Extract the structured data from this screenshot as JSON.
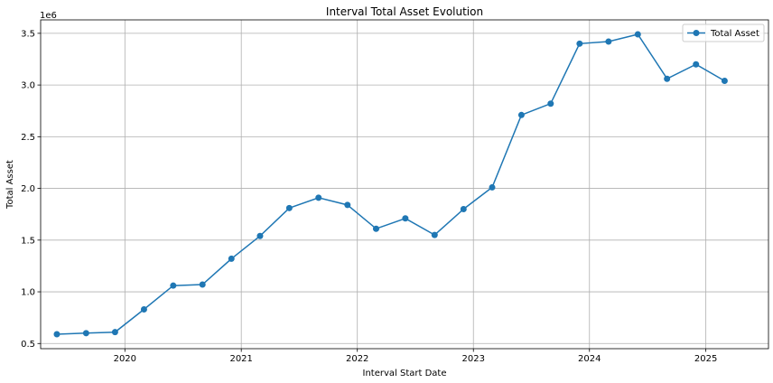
{
  "chart_data": {
    "type": "line",
    "title": "Interval Total Asset Evolution",
    "xlabel": "Interval Start Date",
    "ylabel": "Total Asset",
    "y_offset_text": "1e6",
    "grid": true,
    "legend_position": "top-right",
    "xlim": [
      "2019-04-11",
      "2025-07-17"
    ],
    "ylim": [
      0.45,
      3.63
    ],
    "y_scale_factor": 1000000,
    "x_ticks": [
      {
        "date": "2020-01-01",
        "label": "2020"
      },
      {
        "date": "2021-01-01",
        "label": "2021"
      },
      {
        "date": "2022-01-01",
        "label": "2022"
      },
      {
        "date": "2023-01-01",
        "label": "2023"
      },
      {
        "date": "2024-01-01",
        "label": "2024"
      },
      {
        "date": "2025-01-01",
        "label": "2025"
      }
    ],
    "y_ticks": [
      {
        "value": 0.5,
        "label": "0.5"
      },
      {
        "value": 1.0,
        "label": "1.0"
      },
      {
        "value": 1.5,
        "label": "1.5"
      },
      {
        "value": 2.0,
        "label": "2.0"
      },
      {
        "value": 2.5,
        "label": "2.5"
      },
      {
        "value": 3.0,
        "label": "3.0"
      },
      {
        "value": 3.5,
        "label": "3.5"
      }
    ],
    "series": [
      {
        "name": "Total Asset",
        "color": "#1f77b4",
        "marker": "circle",
        "points": [
          {
            "x": "2019-06-01",
            "y": 0.59
          },
          {
            "x": "2019-09-01",
            "y": 0.6
          },
          {
            "x": "2019-12-01",
            "y": 0.61
          },
          {
            "x": "2020-03-01",
            "y": 0.83
          },
          {
            "x": "2020-06-01",
            "y": 1.06
          },
          {
            "x": "2020-09-01",
            "y": 1.07
          },
          {
            "x": "2020-12-01",
            "y": 1.32
          },
          {
            "x": "2021-03-01",
            "y": 1.54
          },
          {
            "x": "2021-06-01",
            "y": 1.81
          },
          {
            "x": "2021-09-01",
            "y": 1.91
          },
          {
            "x": "2021-12-01",
            "y": 1.84
          },
          {
            "x": "2022-03-01",
            "y": 1.61
          },
          {
            "x": "2022-06-01",
            "y": 1.71
          },
          {
            "x": "2022-09-01",
            "y": 1.55
          },
          {
            "x": "2022-12-01",
            "y": 1.8
          },
          {
            "x": "2023-03-01",
            "y": 2.01
          },
          {
            "x": "2023-06-01",
            "y": 2.71
          },
          {
            "x": "2023-09-01",
            "y": 2.82
          },
          {
            "x": "2023-12-01",
            "y": 3.4
          },
          {
            "x": "2024-03-01",
            "y": 3.42
          },
          {
            "x": "2024-06-01",
            "y": 3.49
          },
          {
            "x": "2024-09-01",
            "y": 3.06
          },
          {
            "x": "2024-12-01",
            "y": 3.2
          },
          {
            "x": "2025-03-01",
            "y": 3.04
          }
        ]
      }
    ]
  }
}
